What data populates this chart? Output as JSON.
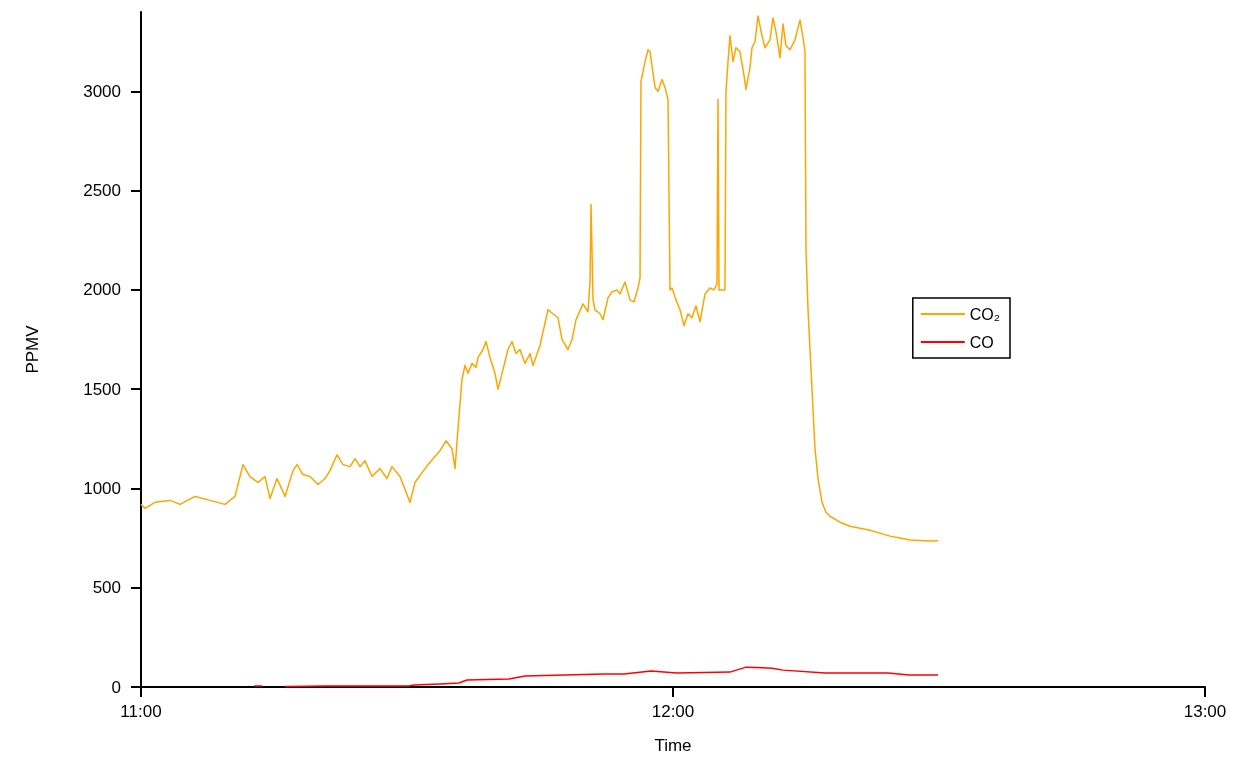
{
  "chart_data": {
    "type": "line",
    "xlabel": "Time",
    "ylabel": "PPMV",
    "xlim": [
      11,
      13
    ],
    "xticks": [
      {
        "value": 11,
        "label": "11:00"
      },
      {
        "value": 12,
        "label": "12:00"
      },
      {
        "value": 13,
        "label": "13:00"
      }
    ],
    "ylim": [
      0,
      3400
    ],
    "yticks": [
      0,
      500,
      1000,
      1500,
      2000,
      2500,
      3000
    ],
    "grid": false,
    "legend": "right",
    "marker": "none",
    "line_style": "solid",
    "series": [
      {
        "name": "CO₂",
        "color": "#ffa500",
        "x": [
          11,
          11.0075,
          11.0263,
          11.0545,
          11.0733,
          11.1015,
          11.1297,
          11.1579,
          11.1767,
          11.1917,
          11.2049,
          11.2199,
          11.2331,
          11.2425,
          11.2556,
          11.2707,
          11.2857,
          11.2932,
          11.3045,
          11.3177,
          11.3327,
          11.3459,
          11.3553,
          11.3684,
          11.3797,
          11.3929,
          11.4023,
          11.4117,
          11.4211,
          11.4342,
          11.4492,
          11.4624,
          11.4718,
          11.4868,
          11.5,
          11.5056,
          11.515,
          11.5282,
          11.5395,
          11.5489,
          11.562,
          11.5733,
          11.5846,
          11.5902,
          11.5959,
          11.6034,
          11.609,
          11.6147,
          11.6222,
          11.6297,
          11.6335,
          11.6429,
          11.6485,
          11.656,
          11.6654,
          11.6711,
          11.6805,
          11.6898,
          11.6974,
          11.7049,
          11.7124,
          11.7218,
          11.7312,
          11.7368,
          11.75,
          11.765,
          11.7744,
          11.7838,
          11.7914,
          11.8026,
          11.8102,
          11.8177,
          11.8308,
          11.8402,
          11.844,
          11.8459,
          11.8497,
          11.8534,
          11.8628,
          11.8684,
          11.8778,
          11.8853,
          11.8947,
          11.9004,
          11.9098,
          11.9192,
          11.9267,
          11.9342,
          11.938,
          11.9398,
          11.9474,
          11.953,
          11.9568,
          11.9662,
          11.9718,
          11.9793,
          11.985,
          11.9906,
          11.9944,
          11.9981,
          12.0056,
          12.0132,
          12.0207,
          12.0282,
          12.0357,
          12.0432,
          12.0508,
          12.0602,
          12.0695,
          12.0771,
          12.0827,
          12.0846,
          12.0865,
          12.094,
          12.0977,
          12.0996,
          12.1034,
          12.1071,
          12.1128,
          12.1184,
          12.1259,
          12.1335,
          12.1372,
          12.1447,
          12.1485,
          12.1541,
          12.1598,
          12.1673,
          12.1729,
          12.1823,
          12.188,
          12.1936,
          12.2011,
          12.2068,
          12.2124,
          12.2199,
          12.2293,
          12.2387,
          12.2444,
          12.2481,
          12.25,
          12.2538,
          12.2613,
          12.2669,
          12.2726,
          12.2801,
          12.2876,
          12.2951,
          12.3139,
          12.3327,
          12.3515,
          12.3703,
          12.3891,
          12.4079,
          12.4267,
          12.4455,
          12.4643,
          12.4831,
          12.4981
        ],
        "values": [
          920,
          900,
          930,
          940,
          920,
          960,
          940,
          920,
          960,
          1120,
          1060,
          1030,
          1060,
          950,
          1050,
          960,
          1090,
          1120,
          1070,
          1060,
          1020,
          1050,
          1090,
          1170,
          1120,
          1110,
          1150,
          1110,
          1140,
          1060,
          1100,
          1050,
          1110,
          1060,
          970,
          930,
          1030,
          1080,
          1120,
          1150,
          1190,
          1240,
          1200,
          1100,
          1300,
          1550,
          1620,
          1580,
          1630,
          1610,
          1660,
          1700,
          1740,
          1660,
          1580,
          1500,
          1600,
          1700,
          1740,
          1680,
          1700,
          1630,
          1680,
          1620,
          1720,
          1900,
          1880,
          1860,
          1750,
          1700,
          1750,
          1850,
          1930,
          1890,
          2040,
          2430,
          1950,
          1900,
          1880,
          1850,
          1960,
          1990,
          2000,
          1980,
          2040,
          1950,
          1940,
          2010,
          2060,
          3050,
          3150,
          3210,
          3200,
          3020,
          3000,
          3060,
          3020,
          2960,
          2000,
          2010,
          1950,
          1900,
          1820,
          1880,
          1860,
          1920,
          1840,
          1980,
          2010,
          2000,
          2030,
          2960,
          2000,
          2000,
          2000,
          3000,
          3150,
          3280,
          3150,
          3220,
          3200,
          3080,
          3010,
          3120,
          3220,
          3250,
          3380,
          3280,
          3220,
          3260,
          3370,
          3300,
          3170,
          3340,
          3230,
          3210,
          3260,
          3360,
          3270,
          3200,
          2200,
          1900,
          1500,
          1200,
          1050,
          930,
          880,
          860,
          830,
          810,
          800,
          790,
          775,
          760,
          750,
          740,
          738,
          735,
          737
        ]
      },
      {
        "name": "CO",
        "color": "#ff0000",
        "x": [
          11.2124,
          11.2274,
          11.2481,
          11.2707,
          11.3459,
          11.5038,
          11.5132,
          11.562,
          11.5977,
          11.6128,
          11.6917,
          11.7218,
          11.8703,
          11.9079,
          11.9586,
          12.0075,
          12.1071,
          12.1372,
          12.1861,
          12.2068,
          12.2857,
          12.4041,
          12.4436,
          12.4981
        ],
        "values": [
          5,
          5,
          null,
          3,
          5,
          5,
          10,
          15,
          20,
          35,
          40,
          55,
          65,
          65,
          80,
          70,
          75,
          100,
          95,
          85,
          70,
          70,
          60,
          60
        ]
      }
    ]
  }
}
